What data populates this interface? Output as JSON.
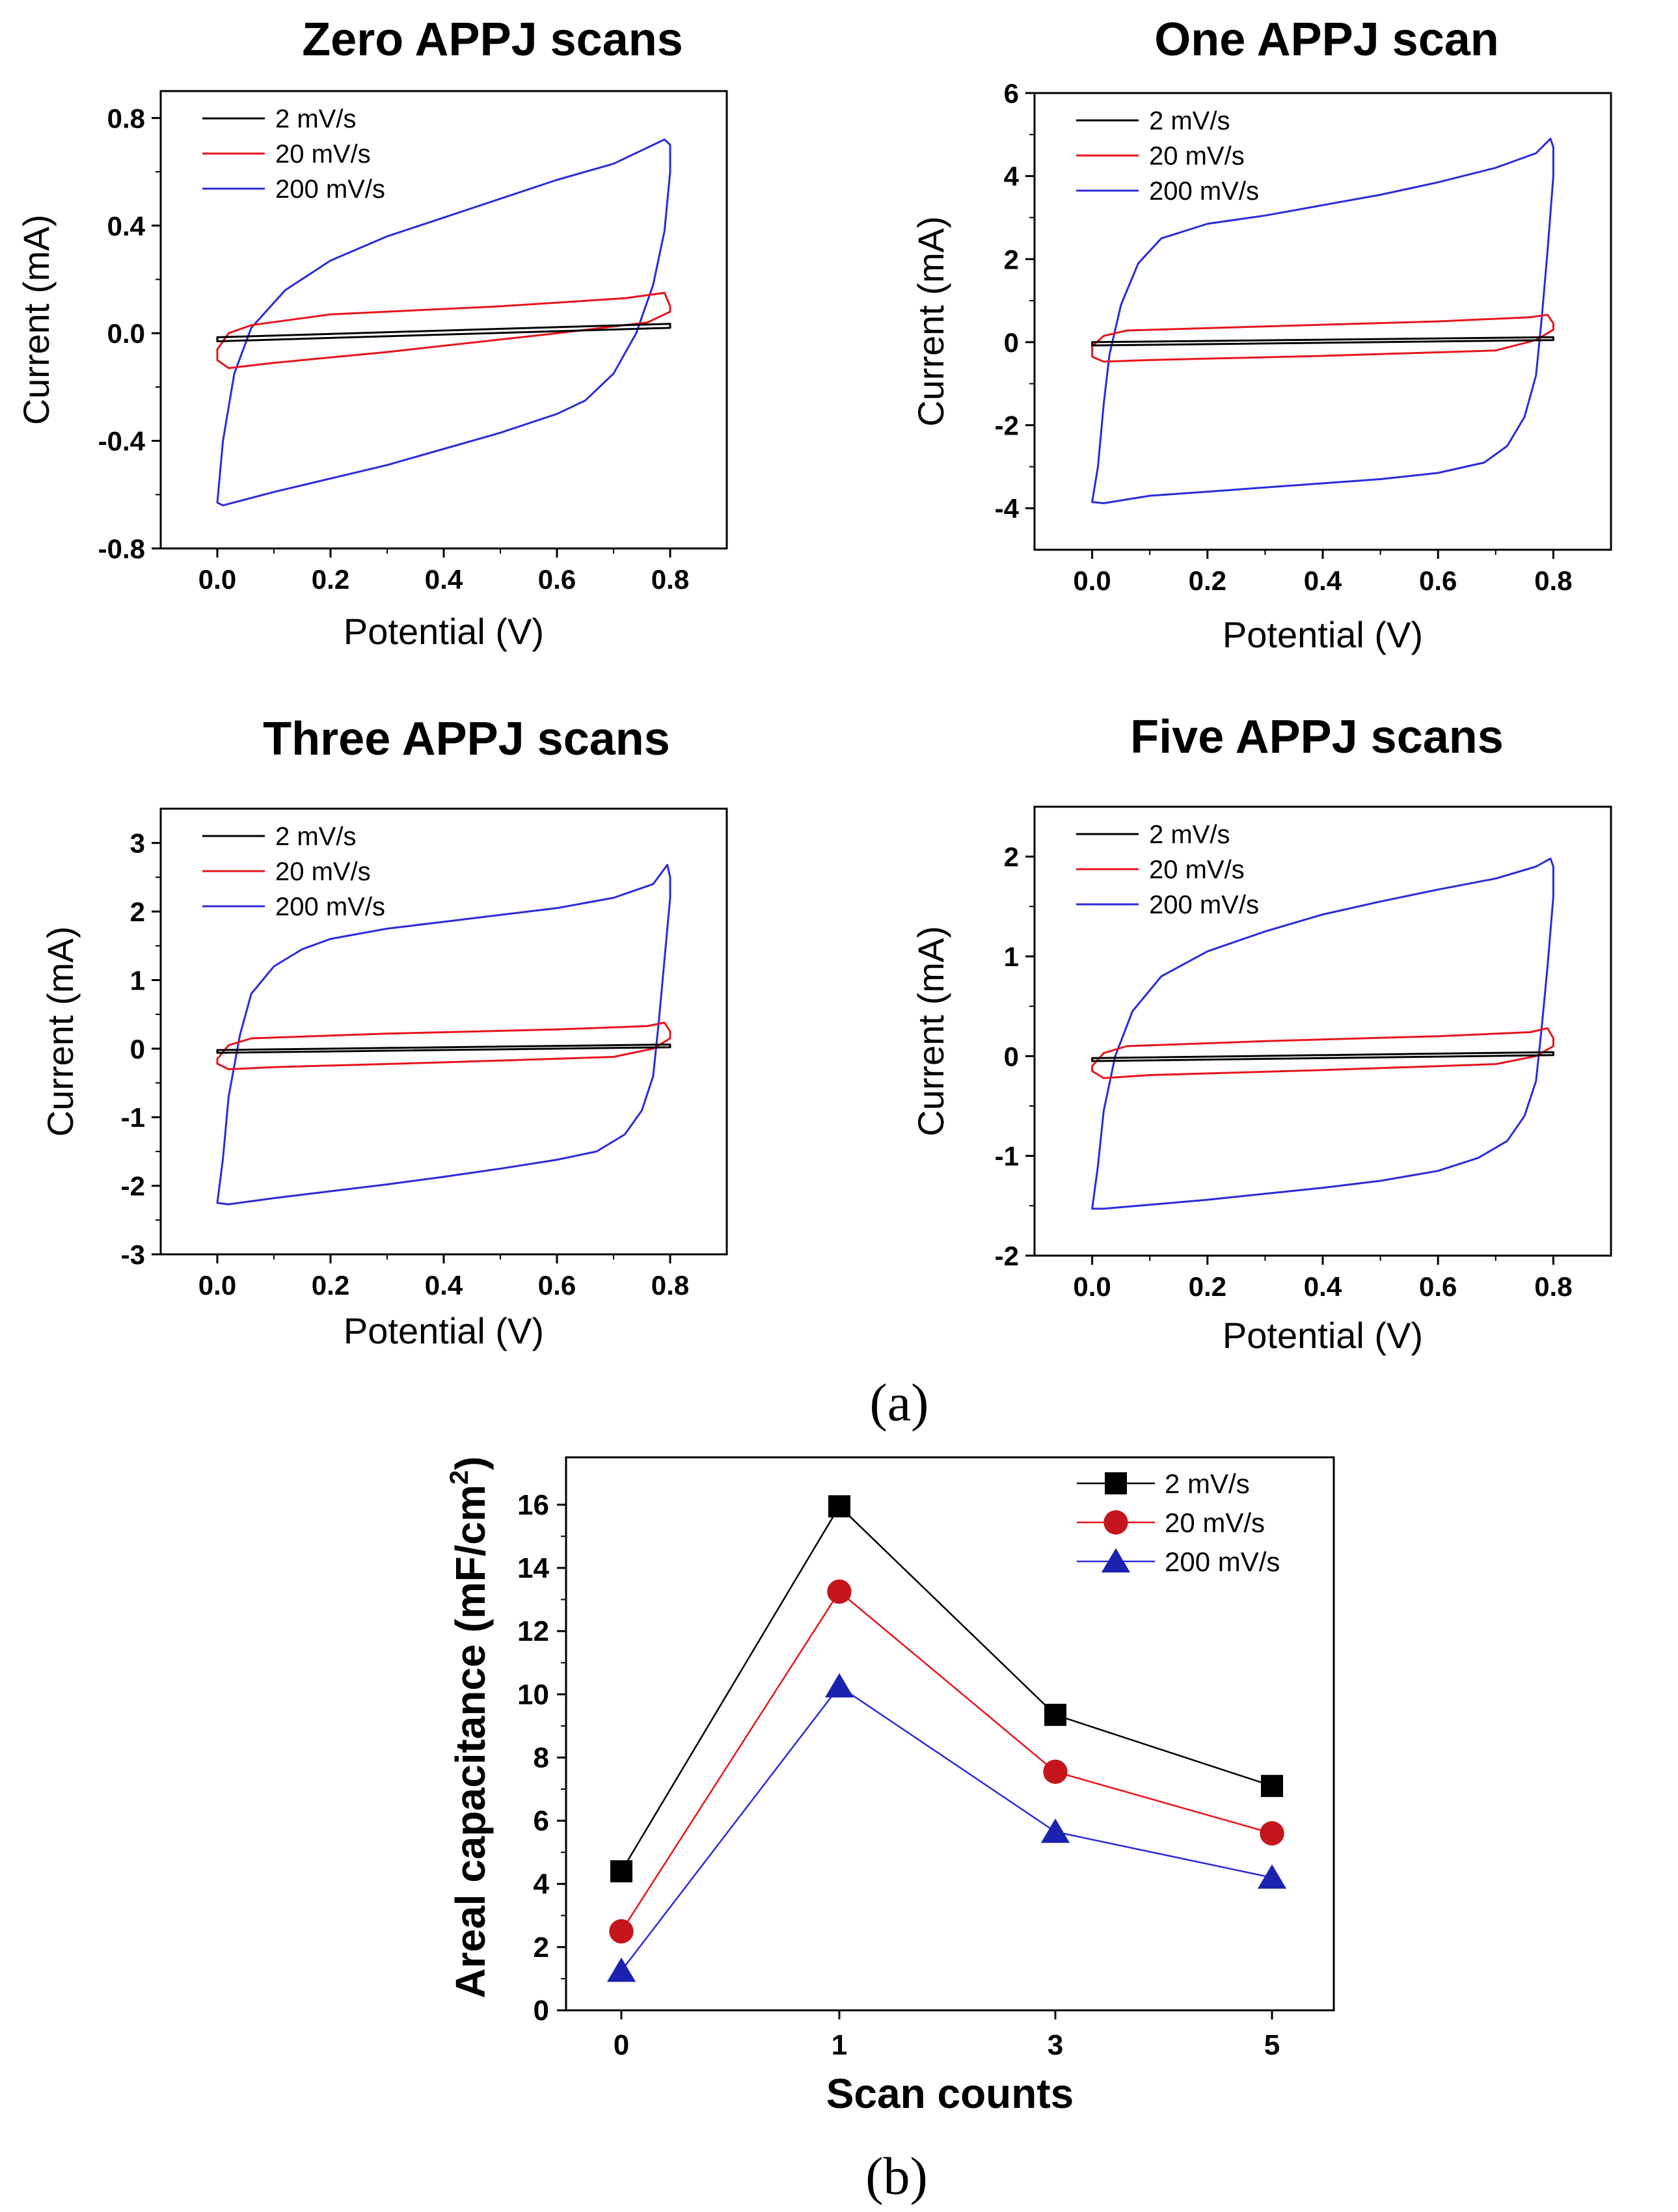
{
  "colors": {
    "slow": "#000000",
    "mid": "#e8141c",
    "fast": "#2b2bd9",
    "mid_fill": "#c4161c",
    "fast_fill": "#1c22b0"
  },
  "chart_data": [
    {
      "type": "line",
      "panel": "zero",
      "title": "Zero APPJ scans",
      "xlabel": "Potential (V)",
      "ylabel": "Current (mA)",
      "xlim": [
        -0.1,
        0.9
      ],
      "ylim": [
        -0.8,
        0.9
      ],
      "xticks": [
        0.0,
        0.2,
        0.4,
        0.6,
        0.8
      ],
      "xtick_labels": [
        "0.0",
        "0.2",
        "0.4",
        "0.6",
        "0.8"
      ],
      "yticks": [
        -0.8,
        -0.4,
        0.0,
        0.4,
        0.8
      ],
      "ytick_labels": [
        "-0.8",
        "-0.4",
        "0.0",
        "0.4",
        "0.8"
      ],
      "legend_position": "top-left",
      "series": [
        {
          "name": "2 mV/s",
          "color_key": "slow",
          "top": [
            [
              0.0,
              -0.015
            ],
            [
              0.8,
              0.035
            ]
          ],
          "bottom": [
            [
              0.8,
              0.02
            ],
            [
              0.0,
              -0.03
            ]
          ]
        },
        {
          "name": "20 mV/s",
          "color_key": "mid",
          "top": [
            [
              0.0,
              -0.06
            ],
            [
              0.02,
              0.0
            ],
            [
              0.06,
              0.03
            ],
            [
              0.2,
              0.07
            ],
            [
              0.5,
              0.1
            ],
            [
              0.72,
              0.13
            ],
            [
              0.79,
              0.15
            ],
            [
              0.8,
              0.1
            ]
          ],
          "bottom": [
            [
              0.8,
              0.08
            ],
            [
              0.76,
              0.04
            ],
            [
              0.6,
              0.0
            ],
            [
              0.3,
              -0.07
            ],
            [
              0.1,
              -0.11
            ],
            [
              0.02,
              -0.13
            ],
            [
              0.0,
              -0.1
            ]
          ]
        },
        {
          "name": "200 mV/s",
          "color_key": "fast",
          "top": [
            [
              0.0,
              -0.63
            ],
            [
              0.01,
              -0.4
            ],
            [
              0.03,
              -0.15
            ],
            [
              0.06,
              0.02
            ],
            [
              0.12,
              0.16
            ],
            [
              0.2,
              0.27
            ],
            [
              0.3,
              0.36
            ],
            [
              0.4,
              0.43
            ],
            [
              0.5,
              0.5
            ],
            [
              0.6,
              0.57
            ],
            [
              0.7,
              0.63
            ],
            [
              0.79,
              0.72
            ],
            [
              0.8,
              0.7
            ]
          ],
          "bottom": [
            [
              0.8,
              0.6
            ],
            [
              0.79,
              0.38
            ],
            [
              0.77,
              0.18
            ],
            [
              0.74,
              0.0
            ],
            [
              0.7,
              -0.15
            ],
            [
              0.65,
              -0.25
            ],
            [
              0.6,
              -0.3
            ],
            [
              0.5,
              -0.37
            ],
            [
              0.4,
              -0.43
            ],
            [
              0.3,
              -0.49
            ],
            [
              0.2,
              -0.54
            ],
            [
              0.1,
              -0.59
            ],
            [
              0.01,
              -0.64
            ],
            [
              0.0,
              -0.63
            ]
          ]
        }
      ]
    },
    {
      "type": "line",
      "panel": "one",
      "title": "One APPJ scan",
      "xlabel": "Potential (V)",
      "ylabel": "Current (mA)",
      "xlim": [
        -0.1,
        0.9
      ],
      "ylim": [
        -5.0,
        6.0
      ],
      "xticks": [
        0.0,
        0.2,
        0.4,
        0.6,
        0.8
      ],
      "xtick_labels": [
        "0.0",
        "0.2",
        "0.4",
        "0.6",
        "0.8"
      ],
      "yticks": [
        -4,
        -2,
        0,
        2,
        4,
        6
      ],
      "ytick_labels": [
        "-4",
        "-2",
        "0",
        "2",
        "4",
        "6"
      ],
      "legend_position": "top-left",
      "series": [
        {
          "name": "2 mV/s",
          "color_key": "slow",
          "top": [
            [
              0.0,
              0.0
            ],
            [
              0.8,
              0.12
            ]
          ],
          "bottom": [
            [
              0.8,
              0.05
            ],
            [
              0.0,
              -0.08
            ]
          ]
        },
        {
          "name": "20 mV/s",
          "color_key": "mid",
          "top": [
            [
              0.0,
              -0.1
            ],
            [
              0.02,
              0.15
            ],
            [
              0.06,
              0.28
            ],
            [
              0.3,
              0.38
            ],
            [
              0.6,
              0.5
            ],
            [
              0.76,
              0.6
            ],
            [
              0.79,
              0.66
            ],
            [
              0.8,
              0.45
            ]
          ],
          "bottom": [
            [
              0.8,
              0.3
            ],
            [
              0.77,
              0.05
            ],
            [
              0.7,
              -0.2
            ],
            [
              0.4,
              -0.33
            ],
            [
              0.1,
              -0.43
            ],
            [
              0.02,
              -0.47
            ],
            [
              0.0,
              -0.35
            ]
          ]
        },
        {
          "name": "200 mV/s",
          "color_key": "fast",
          "top": [
            [
              0.0,
              -3.85
            ],
            [
              0.01,
              -3.0
            ],
            [
              0.02,
              -1.5
            ],
            [
              0.03,
              -0.3
            ],
            [
              0.05,
              0.9
            ],
            [
              0.08,
              1.9
            ],
            [
              0.12,
              2.5
            ],
            [
              0.2,
              2.85
            ],
            [
              0.3,
              3.05
            ],
            [
              0.4,
              3.3
            ],
            [
              0.5,
              3.55
            ],
            [
              0.6,
              3.85
            ],
            [
              0.7,
              4.2
            ],
            [
              0.77,
              4.55
            ],
            [
              0.795,
              4.9
            ],
            [
              0.8,
              4.7
            ]
          ],
          "bottom": [
            [
              0.8,
              4.0
            ],
            [
              0.79,
              2.2
            ],
            [
              0.78,
              0.6
            ],
            [
              0.77,
              -0.8
            ],
            [
              0.75,
              -1.8
            ],
            [
              0.72,
              -2.5
            ],
            [
              0.68,
              -2.9
            ],
            [
              0.6,
              -3.15
            ],
            [
              0.5,
              -3.3
            ],
            [
              0.4,
              -3.4
            ],
            [
              0.3,
              -3.5
            ],
            [
              0.2,
              -3.6
            ],
            [
              0.1,
              -3.7
            ],
            [
              0.02,
              -3.88
            ],
            [
              0.0,
              -3.85
            ]
          ]
        }
      ]
    },
    {
      "type": "line",
      "panel": "three",
      "title": "Three APPJ scans",
      "xlabel": "Potential (V)",
      "ylabel": "Current (mA)",
      "xlim": [
        -0.1,
        0.9
      ],
      "ylim": [
        -3.0,
        3.5
      ],
      "xticks": [
        0.0,
        0.2,
        0.4,
        0.6,
        0.8
      ],
      "xtick_labels": [
        "0.0",
        "0.2",
        "0.4",
        "0.6",
        "0.8"
      ],
      "yticks": [
        -3,
        -2,
        -1,
        0,
        1,
        2,
        3
      ],
      "ytick_labels": [
        "-3",
        "-2",
        "-1",
        "0",
        "1",
        "2",
        "3"
      ],
      "legend_position": "top-left",
      "series": [
        {
          "name": "2 mV/s",
          "color_key": "slow",
          "top": [
            [
              0.0,
              -0.02
            ],
            [
              0.8,
              0.06
            ]
          ],
          "bottom": [
            [
              0.8,
              0.02
            ],
            [
              0.0,
              -0.06
            ]
          ]
        },
        {
          "name": "20 mV/s",
          "color_key": "mid",
          "top": [
            [
              0.0,
              -0.15
            ],
            [
              0.02,
              0.05
            ],
            [
              0.06,
              0.15
            ],
            [
              0.3,
              0.22
            ],
            [
              0.6,
              0.28
            ],
            [
              0.76,
              0.33
            ],
            [
              0.79,
              0.38
            ],
            [
              0.8,
              0.25
            ]
          ],
          "bottom": [
            [
              0.8,
              0.15
            ],
            [
              0.77,
              0.0
            ],
            [
              0.7,
              -0.12
            ],
            [
              0.4,
              -0.2
            ],
            [
              0.1,
              -0.27
            ],
            [
              0.02,
              -0.3
            ],
            [
              0.0,
              -0.22
            ]
          ]
        },
        {
          "name": "200 mV/s",
          "color_key": "fast",
          "top": [
            [
              0.0,
              -2.25
            ],
            [
              0.01,
              -1.6
            ],
            [
              0.02,
              -0.7
            ],
            [
              0.04,
              0.2
            ],
            [
              0.06,
              0.8
            ],
            [
              0.1,
              1.2
            ],
            [
              0.15,
              1.45
            ],
            [
              0.2,
              1.6
            ],
            [
              0.3,
              1.75
            ],
            [
              0.4,
              1.85
            ],
            [
              0.5,
              1.95
            ],
            [
              0.6,
              2.05
            ],
            [
              0.7,
              2.2
            ],
            [
              0.77,
              2.4
            ],
            [
              0.795,
              2.68
            ],
            [
              0.8,
              2.5
            ]
          ],
          "bottom": [
            [
              0.8,
              2.2
            ],
            [
              0.79,
              1.3
            ],
            [
              0.78,
              0.4
            ],
            [
              0.77,
              -0.4
            ],
            [
              0.75,
              -0.9
            ],
            [
              0.72,
              -1.25
            ],
            [
              0.67,
              -1.5
            ],
            [
              0.6,
              -1.62
            ],
            [
              0.5,
              -1.75
            ],
            [
              0.4,
              -1.87
            ],
            [
              0.3,
              -1.98
            ],
            [
              0.2,
              -2.08
            ],
            [
              0.1,
              -2.18
            ],
            [
              0.02,
              -2.27
            ],
            [
              0.0,
              -2.25
            ]
          ]
        }
      ]
    },
    {
      "type": "line",
      "panel": "five",
      "title": "Five APPJ  scans",
      "xlabel": "Potential (V)",
      "ylabel": "Current (mA)",
      "xlim": [
        -0.1,
        0.9
      ],
      "ylim": [
        -2.0,
        2.5
      ],
      "xticks": [
        0.0,
        0.2,
        0.4,
        0.6,
        0.8
      ],
      "xtick_labels": [
        "0.0",
        "0.2",
        "0.4",
        "0.6",
        "0.8"
      ],
      "yticks": [
        -2,
        -1,
        0,
        1,
        2
      ],
      "ytick_labels": [
        "-2",
        "-1",
        "0",
        "1",
        "2"
      ],
      "legend_position": "top-left",
      "series": [
        {
          "name": "2 mV/s",
          "color_key": "slow",
          "top": [
            [
              0.0,
              -0.02
            ],
            [
              0.8,
              0.04
            ]
          ],
          "bottom": [
            [
              0.8,
              0.01
            ],
            [
              0.0,
              -0.05
            ]
          ]
        },
        {
          "name": "20 mV/s",
          "color_key": "mid",
          "top": [
            [
              0.0,
              -0.1
            ],
            [
              0.02,
              0.03
            ],
            [
              0.06,
              0.1
            ],
            [
              0.3,
              0.15
            ],
            [
              0.6,
              0.2
            ],
            [
              0.76,
              0.24
            ],
            [
              0.79,
              0.28
            ],
            [
              0.8,
              0.18
            ]
          ],
          "bottom": [
            [
              0.8,
              0.1
            ],
            [
              0.77,
              0.0
            ],
            [
              0.7,
              -0.08
            ],
            [
              0.4,
              -0.14
            ],
            [
              0.1,
              -0.19
            ],
            [
              0.02,
              -0.22
            ],
            [
              0.0,
              -0.15
            ]
          ]
        },
        {
          "name": "200 mV/s",
          "color_key": "fast",
          "top": [
            [
              0.0,
              -1.53
            ],
            [
              0.01,
              -1.1
            ],
            [
              0.02,
              -0.55
            ],
            [
              0.04,
              0.0
            ],
            [
              0.07,
              0.45
            ],
            [
              0.12,
              0.8
            ],
            [
              0.2,
              1.05
            ],
            [
              0.3,
              1.25
            ],
            [
              0.4,
              1.42
            ],
            [
              0.5,
              1.55
            ],
            [
              0.6,
              1.67
            ],
            [
              0.7,
              1.78
            ],
            [
              0.77,
              1.9
            ],
            [
              0.795,
              1.98
            ],
            [
              0.8,
              1.9
            ]
          ],
          "bottom": [
            [
              0.8,
              1.6
            ],
            [
              0.79,
              0.9
            ],
            [
              0.78,
              0.3
            ],
            [
              0.77,
              -0.25
            ],
            [
              0.75,
              -0.6
            ],
            [
              0.72,
              -0.85
            ],
            [
              0.67,
              -1.02
            ],
            [
              0.6,
              -1.15
            ],
            [
              0.5,
              -1.25
            ],
            [
              0.4,
              -1.32
            ],
            [
              0.3,
              -1.38
            ],
            [
              0.2,
              -1.44
            ],
            [
              0.1,
              -1.49
            ],
            [
              0.02,
              -1.53
            ],
            [
              0.0,
              -1.53
            ]
          ]
        }
      ]
    },
    {
      "type": "line",
      "panel": "capacitance",
      "title": "",
      "xlabel": "Scan counts",
      "ylabel": "Areal capacitance (mF/cm",
      "ylabel_sup": "2",
      "ylabel_end": ")",
      "categories": [
        "0",
        "1",
        "3",
        "5"
      ],
      "ylim": [
        0,
        17.5
      ],
      "yticks": [
        0,
        2,
        4,
        6,
        8,
        10,
        12,
        14,
        16
      ],
      "ytick_labels": [
        "0",
        "2",
        "4",
        "6",
        "8",
        "10",
        "12",
        "14",
        "16"
      ],
      "legend_position": "top-right",
      "series": [
        {
          "name": "2 mV/s",
          "marker": "square",
          "color_key": "slow",
          "values": [
            4.4,
            15.95,
            9.35,
            7.1
          ]
        },
        {
          "name": "20 mV/s",
          "marker": "circle",
          "color_key": "mid_fill",
          "values": [
            2.5,
            13.25,
            7.55,
            5.6
          ]
        },
        {
          "name": "200 mV/s",
          "marker": "triangle",
          "color_key": "fast_fill",
          "values": [
            1.25,
            10.25,
            5.65,
            4.2
          ]
        }
      ]
    }
  ],
  "captions": {
    "a": "(a)",
    "b": "(b)"
  }
}
